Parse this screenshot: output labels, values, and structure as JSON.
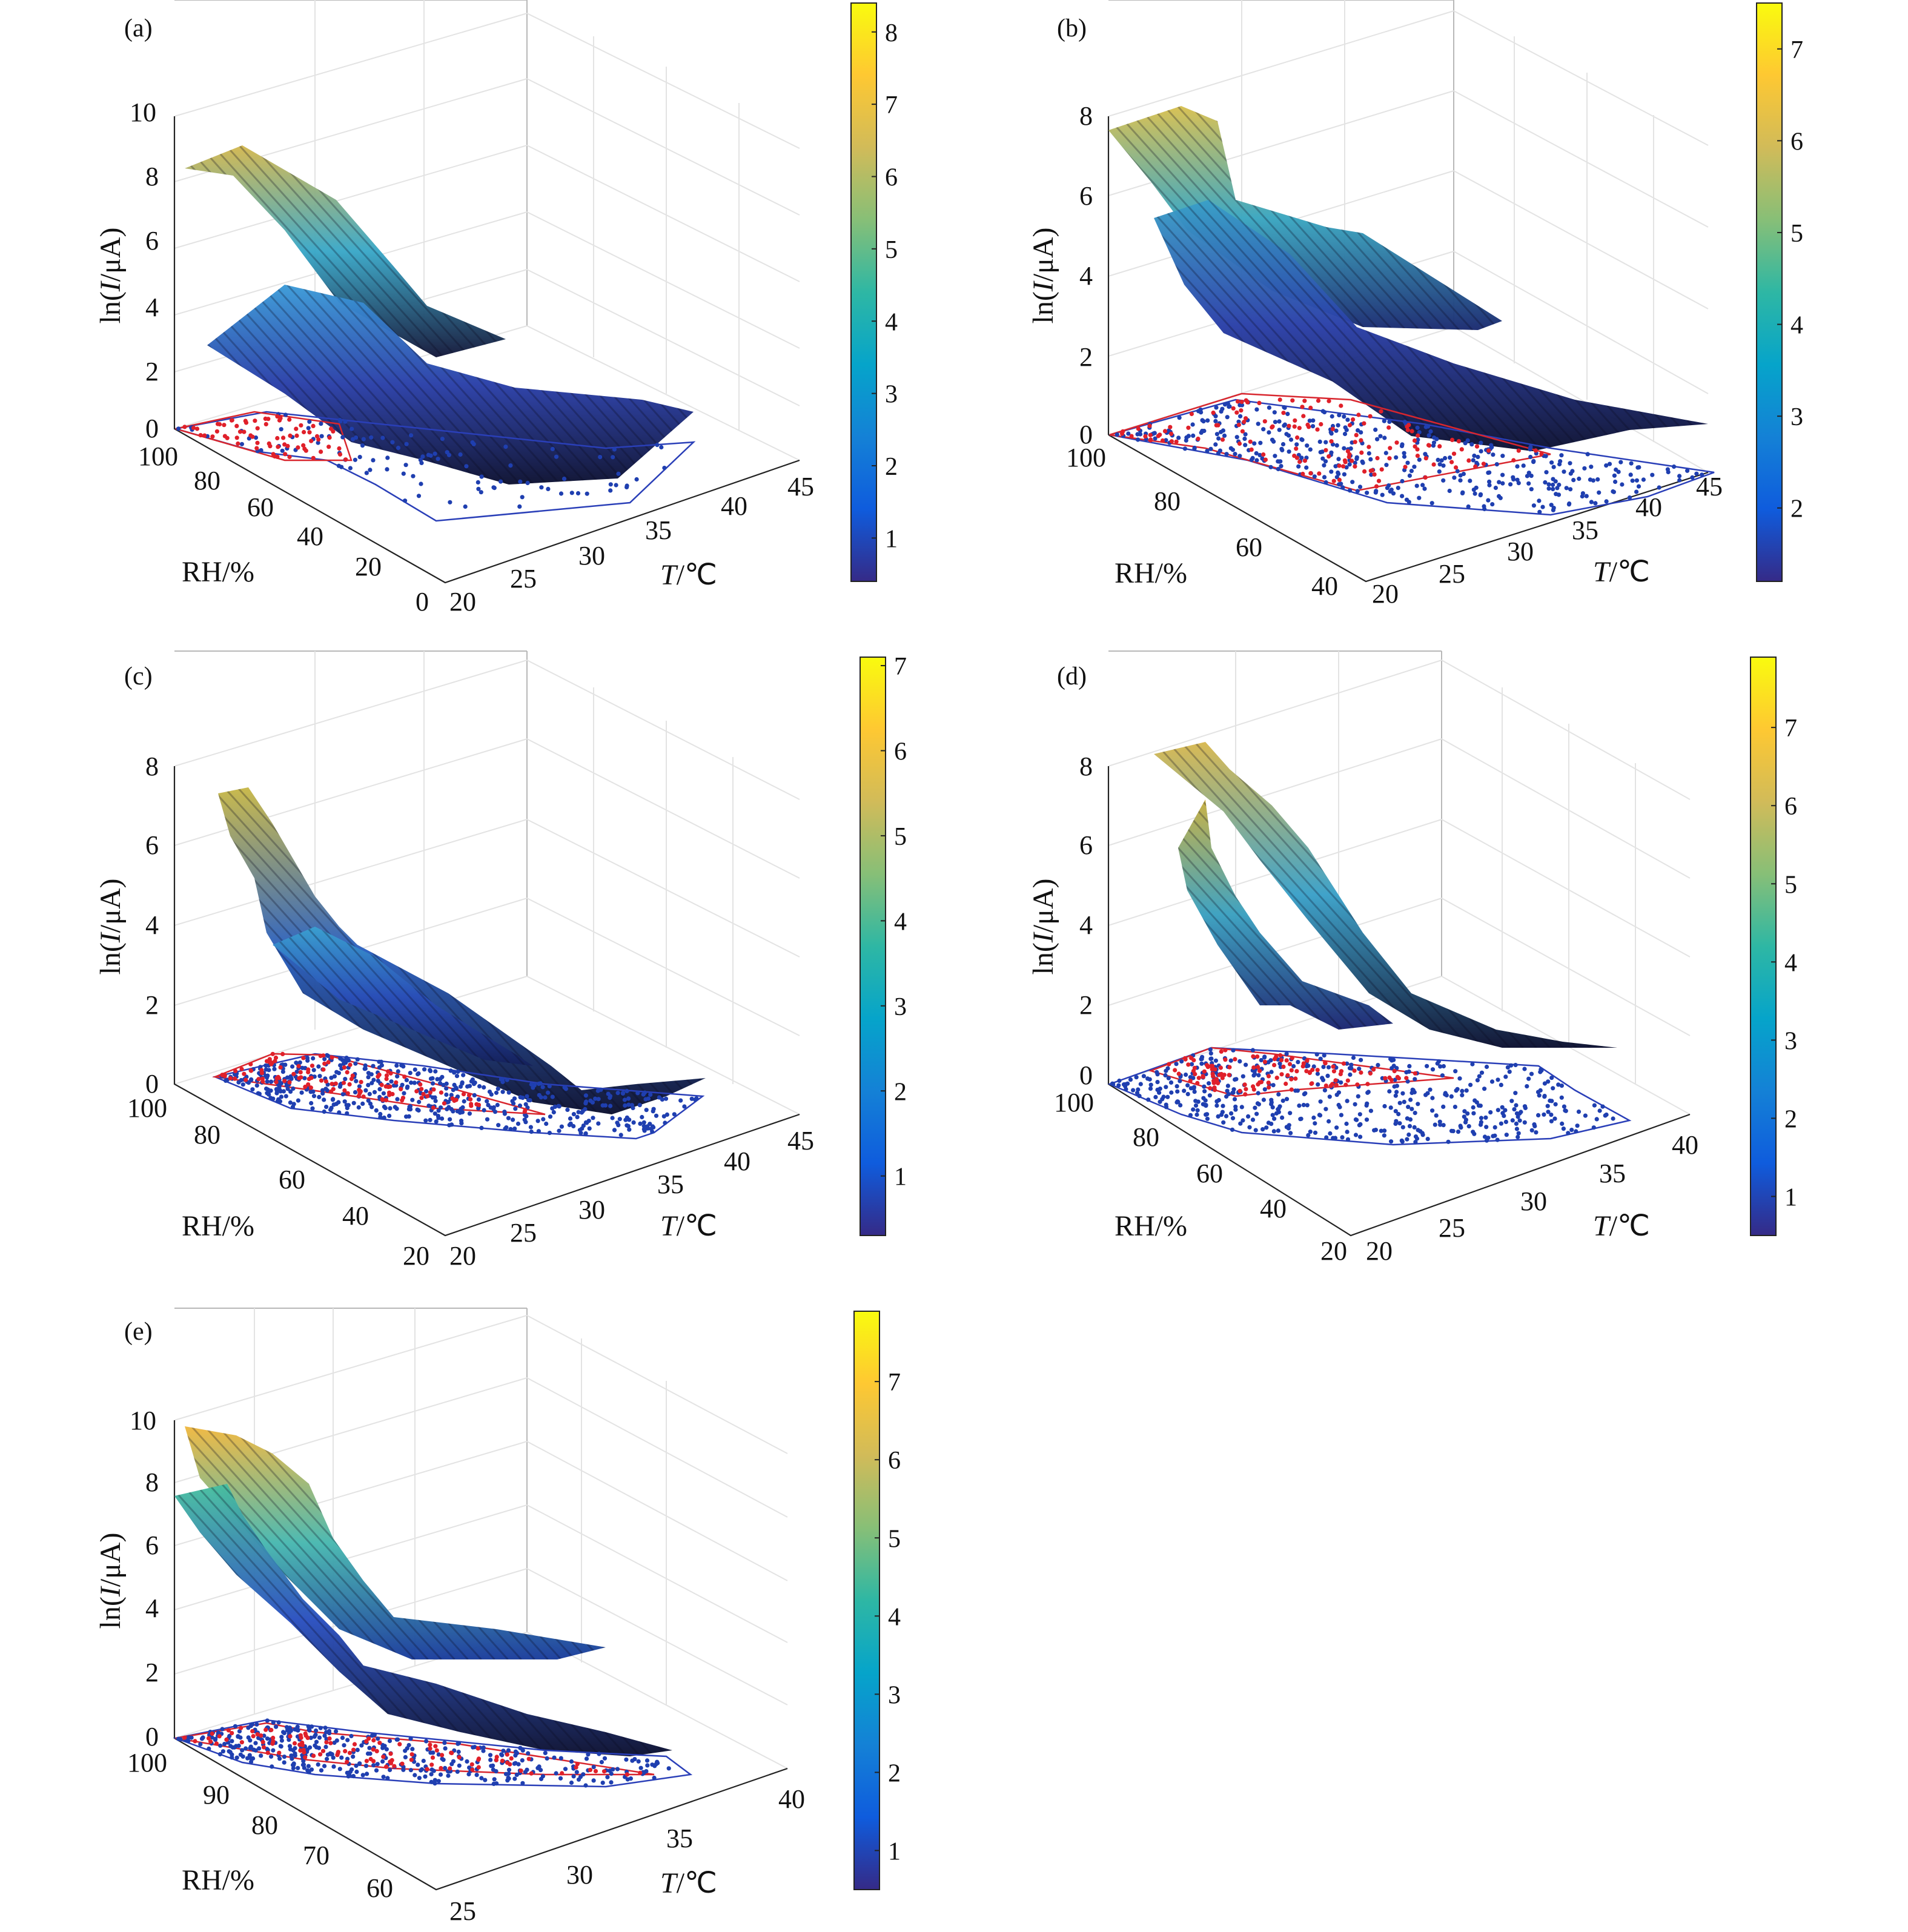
{
  "colors": {
    "colormap": [
      "#352a87",
      "#0f5cdd",
      "#1481d6",
      "#06a4ca",
      "#2eb7a4",
      "#87bf77",
      "#d1bb59",
      "#fec832",
      "#f9fb0e"
    ],
    "scatter_blue": "#1f3fb0",
    "scatter_red": "#e0202a",
    "hull_blue": "#2a3fb8",
    "hull_red": "#d8262e"
  },
  "colorbar_data": [
    {
      "panel": "a",
      "ticks": [
        "1",
        "2",
        "3",
        "4",
        "5",
        "6",
        "7",
        "8"
      ],
      "range": [
        0.4,
        8.4
      ]
    },
    {
      "panel": "b",
      "ticks": [
        "2",
        "3",
        "4",
        "5",
        "6",
        "7"
      ],
      "range": [
        1.2,
        7.5
      ]
    },
    {
      "panel": "c",
      "ticks": [
        "1",
        "2",
        "3",
        "4",
        "5",
        "6",
        "7"
      ],
      "range": [
        0.3,
        7.1
      ]
    },
    {
      "panel": "d",
      "ticks": [
        "1",
        "2",
        "3",
        "4",
        "5",
        "6",
        "7"
      ],
      "range": [
        0.5,
        7.9
      ]
    },
    {
      "panel": "e",
      "ticks": [
        "1",
        "2",
        "3",
        "4",
        "5",
        "6",
        "7"
      ],
      "range": [
        0.5,
        7.9
      ]
    }
  ],
  "chart_data": [
    {
      "panel": "a",
      "label": "(a)",
      "type": "surface",
      "zlabel": "ln(I/μA)",
      "xlabel": "RH/%",
      "ylabel": "T/℃",
      "z_ticks": [
        "0",
        "2",
        "4",
        "6",
        "8",
        "10"
      ],
      "rh_ticks": [
        "100",
        "80",
        "60",
        "40",
        "20",
        "0"
      ],
      "t_ticks": [
        "20",
        "25",
        "30",
        "35",
        "40",
        "45"
      ],
      "zlim": [
        0,
        10
      ],
      "rhlim": [
        100,
        0
      ],
      "tlim": [
        20,
        45
      ],
      "surfaces": [
        [
          [
            100,
            20,
            8.3
          ],
          [
            80,
            28,
            6.2
          ],
          [
            65,
            33,
            2.9
          ],
          [
            60,
            37,
            2.2
          ],
          [
            75,
            27,
            8.3
          ],
          [
            95,
            22,
            8.6
          ]
        ],
        [
          [
            100,
            20,
            2.5
          ],
          [
            70,
            30,
            1.3
          ],
          [
            30,
            43,
            0.2
          ],
          [
            20,
            45,
            0.0
          ],
          [
            40,
            42,
            1.3
          ],
          [
            75,
            28,
            3.6
          ],
          [
            95,
            21,
            3.7
          ]
        ]
      ]
    },
    {
      "panel": "b",
      "label": "(b)",
      "type": "surface",
      "zlabel": "ln(I/μA)",
      "xlabel": "RH/%",
      "ylabel": "T/℃",
      "z_ticks": [
        "0",
        "2",
        "4",
        "6",
        "8"
      ],
      "rh_ticks": [
        "100",
        "80",
        "60",
        "40"
      ],
      "t_ticks": [
        "20",
        "25",
        "30",
        "35",
        "40",
        "45"
      ],
      "zlim": [
        0,
        8
      ],
      "rhlim": [
        100,
        40
      ],
      "tlim": [
        20,
        45
      ],
      "surfaces": [
        [
          [
            100,
            20,
            7.6
          ],
          [
            88,
            27,
            5.1
          ],
          [
            80,
            33,
            3.2
          ],
          [
            78,
            38,
            2.6
          ],
          [
            82,
            32,
            4.5
          ],
          [
            92,
            26,
            6.6
          ],
          [
            98,
            21,
            8.1
          ]
        ],
        [
          [
            95,
            23,
            5.3
          ],
          [
            80,
            32,
            2.1
          ],
          [
            60,
            42,
            0.3
          ],
          [
            50,
            45,
            0.1
          ],
          [
            58,
            44,
            0.5
          ],
          [
            75,
            36,
            2.4
          ],
          [
            90,
            27,
            4.6
          ]
        ]
      ]
    },
    {
      "panel": "c",
      "label": "(c)",
      "type": "surface",
      "zlabel": "ln(I/μA)",
      "xlabel": "RH/%",
      "ylabel": "T/℃",
      "z_ticks": [
        "0",
        "2",
        "4",
        "6",
        "8"
      ],
      "rh_ticks": [
        "100",
        "80",
        "60",
        "40",
        "20"
      ],
      "t_ticks": [
        "20",
        "25",
        "30",
        "35",
        "40",
        "45"
      ],
      "zlim": [
        0,
        8
      ],
      "rhlim": [
        100,
        20
      ],
      "tlim": [
        20,
        45
      ],
      "surfaces": [
        [
          [
            100,
            21,
            7.4
          ],
          [
            85,
            28,
            3.3
          ],
          [
            65,
            38,
            0.4
          ],
          [
            55,
            43,
            0.1
          ],
          [
            62,
            40,
            0.8
          ],
          [
            80,
            31,
            3.1
          ],
          [
            95,
            24,
            7.1
          ]
        ],
        [
          [
            96,
            22,
            4.2
          ],
          [
            80,
            30,
            1.6
          ],
          [
            65,
            38,
            0.9
          ],
          [
            72,
            35,
            1.7
          ],
          [
            88,
            27,
            2.8
          ]
        ]
      ]
    },
    {
      "panel": "d",
      "label": "(d)",
      "type": "surface",
      "zlabel": "ln(I/μA)",
      "xlabel": "RH/%",
      "ylabel": "T/℃",
      "z_ticks": [
        "0",
        "2",
        "4",
        "6",
        "8"
      ],
      "rh_ticks": [
        "100",
        "80",
        "60",
        "40",
        "20"
      ],
      "t_ticks": [
        "20",
        "25",
        "30",
        "35",
        "40"
      ],
      "zlim": [
        0,
        8
      ],
      "rhlim": [
        100,
        20
      ],
      "tlim": [
        20,
        40
      ],
      "surfaces": [
        [
          [
            100,
            21,
            8.3
          ],
          [
            88,
            25,
            6.2
          ],
          [
            75,
            31,
            2.6
          ],
          [
            70,
            35,
            0.9
          ],
          [
            74,
            33,
            1.6
          ],
          [
            86,
            27,
            5.3
          ],
          [
            98,
            22,
            8.6
          ]
        ],
        [
          [
            98,
            22,
            6.7
          ],
          [
            88,
            26,
            4.4
          ],
          [
            78,
            30,
            2.2
          ],
          [
            84,
            28,
            3.2
          ],
          [
            94,
            23,
            6.0
          ]
        ]
      ]
    },
    {
      "panel": "e",
      "label": "(e)",
      "type": "surface",
      "zlabel": "ln(I/μA)",
      "xlabel": "RH/%",
      "ylabel": "T/℃",
      "z_ticks": [
        "0",
        "2",
        "4",
        "6",
        "8",
        "10"
      ],
      "rh_ticks": [
        "100",
        "90",
        "80",
        "70",
        "60"
      ],
      "t_ticks": [
        "25",
        "30",
        "35",
        "40"
      ],
      "zlim": [
        0,
        10
      ],
      "rhlim": [
        100,
        55
      ],
      "tlim": [
        25,
        40
      ],
      "surfaces": [
        [
          [
            100,
            25,
            9.8
          ],
          [
            95,
            28,
            7.3
          ],
          [
            88,
            33,
            3.1
          ],
          [
            80,
            38,
            2.6
          ],
          [
            86,
            35,
            3.5
          ],
          [
            95,
            29,
            8.9
          ],
          [
            99,
            26,
            9.6
          ]
        ],
        [
          [
            99,
            25,
            7.4
          ],
          [
            92,
            29,
            2.9
          ],
          [
            82,
            35,
            0.6
          ],
          [
            76,
            38,
            0.2
          ],
          [
            84,
            35,
            1.2
          ],
          [
            95,
            28,
            4.8
          ]
        ]
      ]
    }
  ]
}
